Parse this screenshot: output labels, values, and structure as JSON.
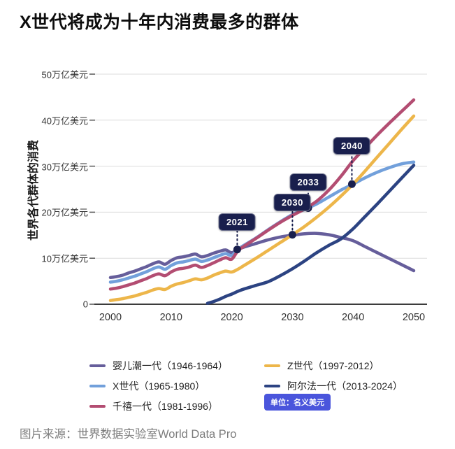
{
  "title": "X世代将成为十年内消费最多的群体",
  "source": "图片来源：世界数据实验室World Data Pro",
  "unit_badge": "单位：名义美元",
  "colors": {
    "annotation": "#191F4D",
    "badge_bg": "#4A55DC",
    "grid": "#DCDCDC",
    "axis": "#3C3C3C",
    "tick_mark": "#555555"
  },
  "chart_data": {
    "type": "line",
    "title": "X世代将成为十年内消费最多的群体",
    "xlabel": "",
    "ylabel": "世界各代群体的消费",
    "x_ticks": [
      "2000",
      "2010",
      "2020",
      "2030",
      "2040",
      "2050"
    ],
    "x_tick_values": [
      2000,
      2010,
      2020,
      2030,
      2040,
      2050
    ],
    "y_ticks": [
      "50万亿美元",
      "40万亿美元",
      "30万亿美元",
      "20万亿美元",
      "10万亿美元",
      "0"
    ],
    "y_tick_values": [
      50,
      40,
      30,
      20,
      10,
      0
    ],
    "xlim": [
      2000,
      2050
    ],
    "ylim": [
      0,
      53
    ],
    "grid": "horizontal",
    "legend_position": "bottom",
    "unit_note": "单位：名义美元",
    "series": [
      {
        "id": "boomers",
        "name": "婴儿潮一代（1946-1964）",
        "color": "#665E9B",
        "points": [
          [
            2000,
            5.8
          ],
          [
            2001,
            6.0
          ],
          [
            2002,
            6.3
          ],
          [
            2003,
            6.8
          ],
          [
            2004,
            7.2
          ],
          [
            2005,
            7.7
          ],
          [
            2006,
            8.2
          ],
          [
            2007,
            8.8
          ],
          [
            2008,
            9.2
          ],
          [
            2009,
            8.7
          ],
          [
            2010,
            9.5
          ],
          [
            2011,
            10.1
          ],
          [
            2012,
            10.3
          ],
          [
            2013,
            10.6
          ],
          [
            2014,
            10.9
          ],
          [
            2015,
            10.3
          ],
          [
            2016,
            10.6
          ],
          [
            2017,
            11.1
          ],
          [
            2018,
            11.5
          ],
          [
            2019,
            11.8
          ],
          [
            2020,
            11.2
          ],
          [
            2021,
            11.9
          ],
          [
            2022,
            12.4
          ],
          [
            2024,
            13.2
          ],
          [
            2026,
            14.0
          ],
          [
            2028,
            14.6
          ],
          [
            2030,
            15.0
          ],
          [
            2032,
            15.3
          ],
          [
            2034,
            15.4
          ],
          [
            2036,
            15.1
          ],
          [
            2038,
            14.5
          ],
          [
            2040,
            13.8
          ],
          [
            2042,
            12.5
          ],
          [
            2044,
            11.2
          ],
          [
            2046,
            9.9
          ],
          [
            2048,
            8.6
          ],
          [
            2050,
            7.3
          ]
        ]
      },
      {
        "id": "genx",
        "name": "X世代（1965-1980）",
        "color": "#72A0DB",
        "points": [
          [
            2000,
            4.8
          ],
          [
            2001,
            5.0
          ],
          [
            2002,
            5.3
          ],
          [
            2003,
            5.7
          ],
          [
            2004,
            6.1
          ],
          [
            2005,
            6.6
          ],
          [
            2006,
            7.1
          ],
          [
            2007,
            7.7
          ],
          [
            2008,
            8.1
          ],
          [
            2009,
            7.6
          ],
          [
            2010,
            8.4
          ],
          [
            2011,
            9.0
          ],
          [
            2012,
            9.2
          ],
          [
            2013,
            9.5
          ],
          [
            2014,
            9.8
          ],
          [
            2015,
            9.3
          ],
          [
            2016,
            9.6
          ],
          [
            2017,
            10.1
          ],
          [
            2018,
            10.6
          ],
          [
            2019,
            11.0
          ],
          [
            2020,
            10.6
          ],
          [
            2021,
            11.9
          ],
          [
            2022,
            12.8
          ],
          [
            2024,
            14.4
          ],
          [
            2026,
            16.2
          ],
          [
            2028,
            17.9
          ],
          [
            2030,
            19.5
          ],
          [
            2032,
            20.6
          ],
          [
            2034,
            21.8
          ],
          [
            2036,
            23.3
          ],
          [
            2038,
            24.8
          ],
          [
            2040,
            26.1
          ],
          [
            2042,
            27.5
          ],
          [
            2044,
            28.7
          ],
          [
            2046,
            29.7
          ],
          [
            2048,
            30.5
          ],
          [
            2050,
            30.9
          ]
        ]
      },
      {
        "id": "millennials",
        "name": "千禧一代（1981-1996）",
        "color": "#B34D72",
        "points": [
          [
            2000,
            3.3
          ],
          [
            2001,
            3.5
          ],
          [
            2002,
            3.8
          ],
          [
            2003,
            4.2
          ],
          [
            2004,
            4.6
          ],
          [
            2005,
            5.1
          ],
          [
            2006,
            5.6
          ],
          [
            2007,
            6.2
          ],
          [
            2008,
            6.6
          ],
          [
            2009,
            6.2
          ],
          [
            2010,
            7.0
          ],
          [
            2011,
            7.6
          ],
          [
            2012,
            7.8
          ],
          [
            2013,
            8.1
          ],
          [
            2014,
            8.5
          ],
          [
            2015,
            8.0
          ],
          [
            2016,
            8.4
          ],
          [
            2017,
            9.0
          ],
          [
            2018,
            9.6
          ],
          [
            2019,
            10.1
          ],
          [
            2020,
            9.8
          ],
          [
            2021,
            11.6
          ],
          [
            2022,
            12.6
          ],
          [
            2024,
            14.3
          ],
          [
            2026,
            16.1
          ],
          [
            2028,
            17.8
          ],
          [
            2030,
            19.3
          ],
          [
            2032,
            20.7
          ],
          [
            2034,
            22.4
          ],
          [
            2036,
            24.8
          ],
          [
            2038,
            27.8
          ],
          [
            2040,
            31.2
          ],
          [
            2042,
            34.0
          ],
          [
            2044,
            36.8
          ],
          [
            2046,
            39.4
          ],
          [
            2048,
            41.9
          ],
          [
            2050,
            44.4
          ]
        ]
      },
      {
        "id": "genz",
        "name": "Z世代（1997-2012）",
        "color": "#EDB64A",
        "points": [
          [
            2000,
            0.8
          ],
          [
            2001,
            1.0
          ],
          [
            2002,
            1.2
          ],
          [
            2003,
            1.5
          ],
          [
            2004,
            1.8
          ],
          [
            2005,
            2.2
          ],
          [
            2006,
            2.6
          ],
          [
            2007,
            3.1
          ],
          [
            2008,
            3.4
          ],
          [
            2009,
            3.2
          ],
          [
            2010,
            3.9
          ],
          [
            2011,
            4.4
          ],
          [
            2012,
            4.7
          ],
          [
            2013,
            5.1
          ],
          [
            2014,
            5.5
          ],
          [
            2015,
            5.3
          ],
          [
            2016,
            5.7
          ],
          [
            2017,
            6.3
          ],
          [
            2018,
            6.8
          ],
          [
            2019,
            7.2
          ],
          [
            2020,
            7.0
          ],
          [
            2021,
            7.6
          ],
          [
            2022,
            8.4
          ],
          [
            2024,
            10.0
          ],
          [
            2026,
            11.7
          ],
          [
            2028,
            13.4
          ],
          [
            2030,
            15.1
          ],
          [
            2032,
            16.9
          ],
          [
            2034,
            18.9
          ],
          [
            2036,
            21.1
          ],
          [
            2038,
            23.5
          ],
          [
            2040,
            26.1
          ],
          [
            2042,
            29.0
          ],
          [
            2044,
            32.0
          ],
          [
            2046,
            35.0
          ],
          [
            2048,
            38.0
          ],
          [
            2050,
            40.9
          ]
        ]
      },
      {
        "id": "alpha",
        "name": "阿尔法一代（2013-2024）",
        "color": "#2C4382",
        "points": [
          [
            2016,
            0.2
          ],
          [
            2017,
            0.6
          ],
          [
            2018,
            1.1
          ],
          [
            2019,
            1.7
          ],
          [
            2020,
            2.2
          ],
          [
            2021,
            2.8
          ],
          [
            2022,
            3.3
          ],
          [
            2024,
            4.1
          ],
          [
            2026,
            4.9
          ],
          [
            2028,
            6.2
          ],
          [
            2030,
            7.7
          ],
          [
            2032,
            9.4
          ],
          [
            2034,
            11.2
          ],
          [
            2036,
            12.8
          ],
          [
            2038,
            14.2
          ],
          [
            2040,
            16.4
          ],
          [
            2042,
            19.1
          ],
          [
            2044,
            21.8
          ],
          [
            2046,
            24.6
          ],
          [
            2048,
            27.4
          ],
          [
            2050,
            30.2
          ]
        ]
      }
    ],
    "annotations": [
      {
        "label": "2021",
        "year": 2020.9,
        "value": 11.9,
        "box_offset": 27
      },
      {
        "label": "2030",
        "year": 2030.0,
        "value": 15.1,
        "box_offset": 34
      },
      {
        "label": "2033",
        "year": 2032.6,
        "value": 20.9,
        "box_offset": 24
      },
      {
        "label": "2040",
        "year": 2039.8,
        "value": 26.1,
        "box_offset": 42
      }
    ],
    "legend_columns": {
      "left": [
        0,
        1,
        2
      ],
      "right": [
        3,
        4
      ]
    }
  }
}
